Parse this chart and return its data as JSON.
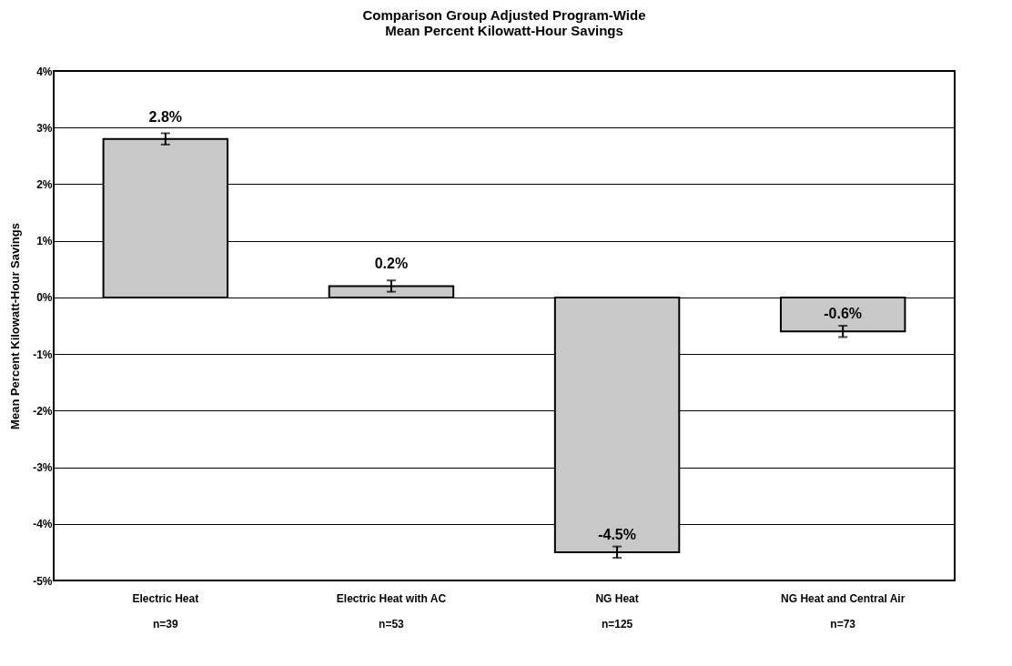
{
  "chart_data": {
    "type": "bar",
    "title": "Comparison Group Adjusted Program-Wide\nMean Percent Kilowatt-Hour Savings",
    "ylabel": "Mean Percent Kilowatt-Hour Savings",
    "categories": [
      "Electric Heat\nn=39",
      "Electric Heat with AC\nn=53",
      "NG Heat\nn=125",
      "NG Heat and Central Air\nn=73"
    ],
    "values": [
      2.8,
      0.2,
      -4.5,
      -0.6
    ],
    "errors": [
      0.1,
      0.1,
      0.1,
      0.1
    ],
    "value_labels": [
      "2.8%",
      "0.2%",
      "-4.5%",
      "-0.6%"
    ],
    "color": "#c8c8c8",
    "ylim": [
      -5,
      4
    ],
    "yticks": [
      {
        "value": -5,
        "label": "-5%"
      },
      {
        "value": -4,
        "label": "-4%"
      },
      {
        "value": -3,
        "label": "-3%"
      },
      {
        "value": -2,
        "label": "-2%"
      },
      {
        "value": -1,
        "label": "-1%"
      },
      {
        "value": 0,
        "label": "0%"
      },
      {
        "value": 1,
        "label": "1%"
      },
      {
        "value": 2,
        "label": "2%"
      },
      {
        "value": 3,
        "label": "3%"
      },
      {
        "value": 4,
        "label": "4%"
      }
    ],
    "grid": "y"
  }
}
